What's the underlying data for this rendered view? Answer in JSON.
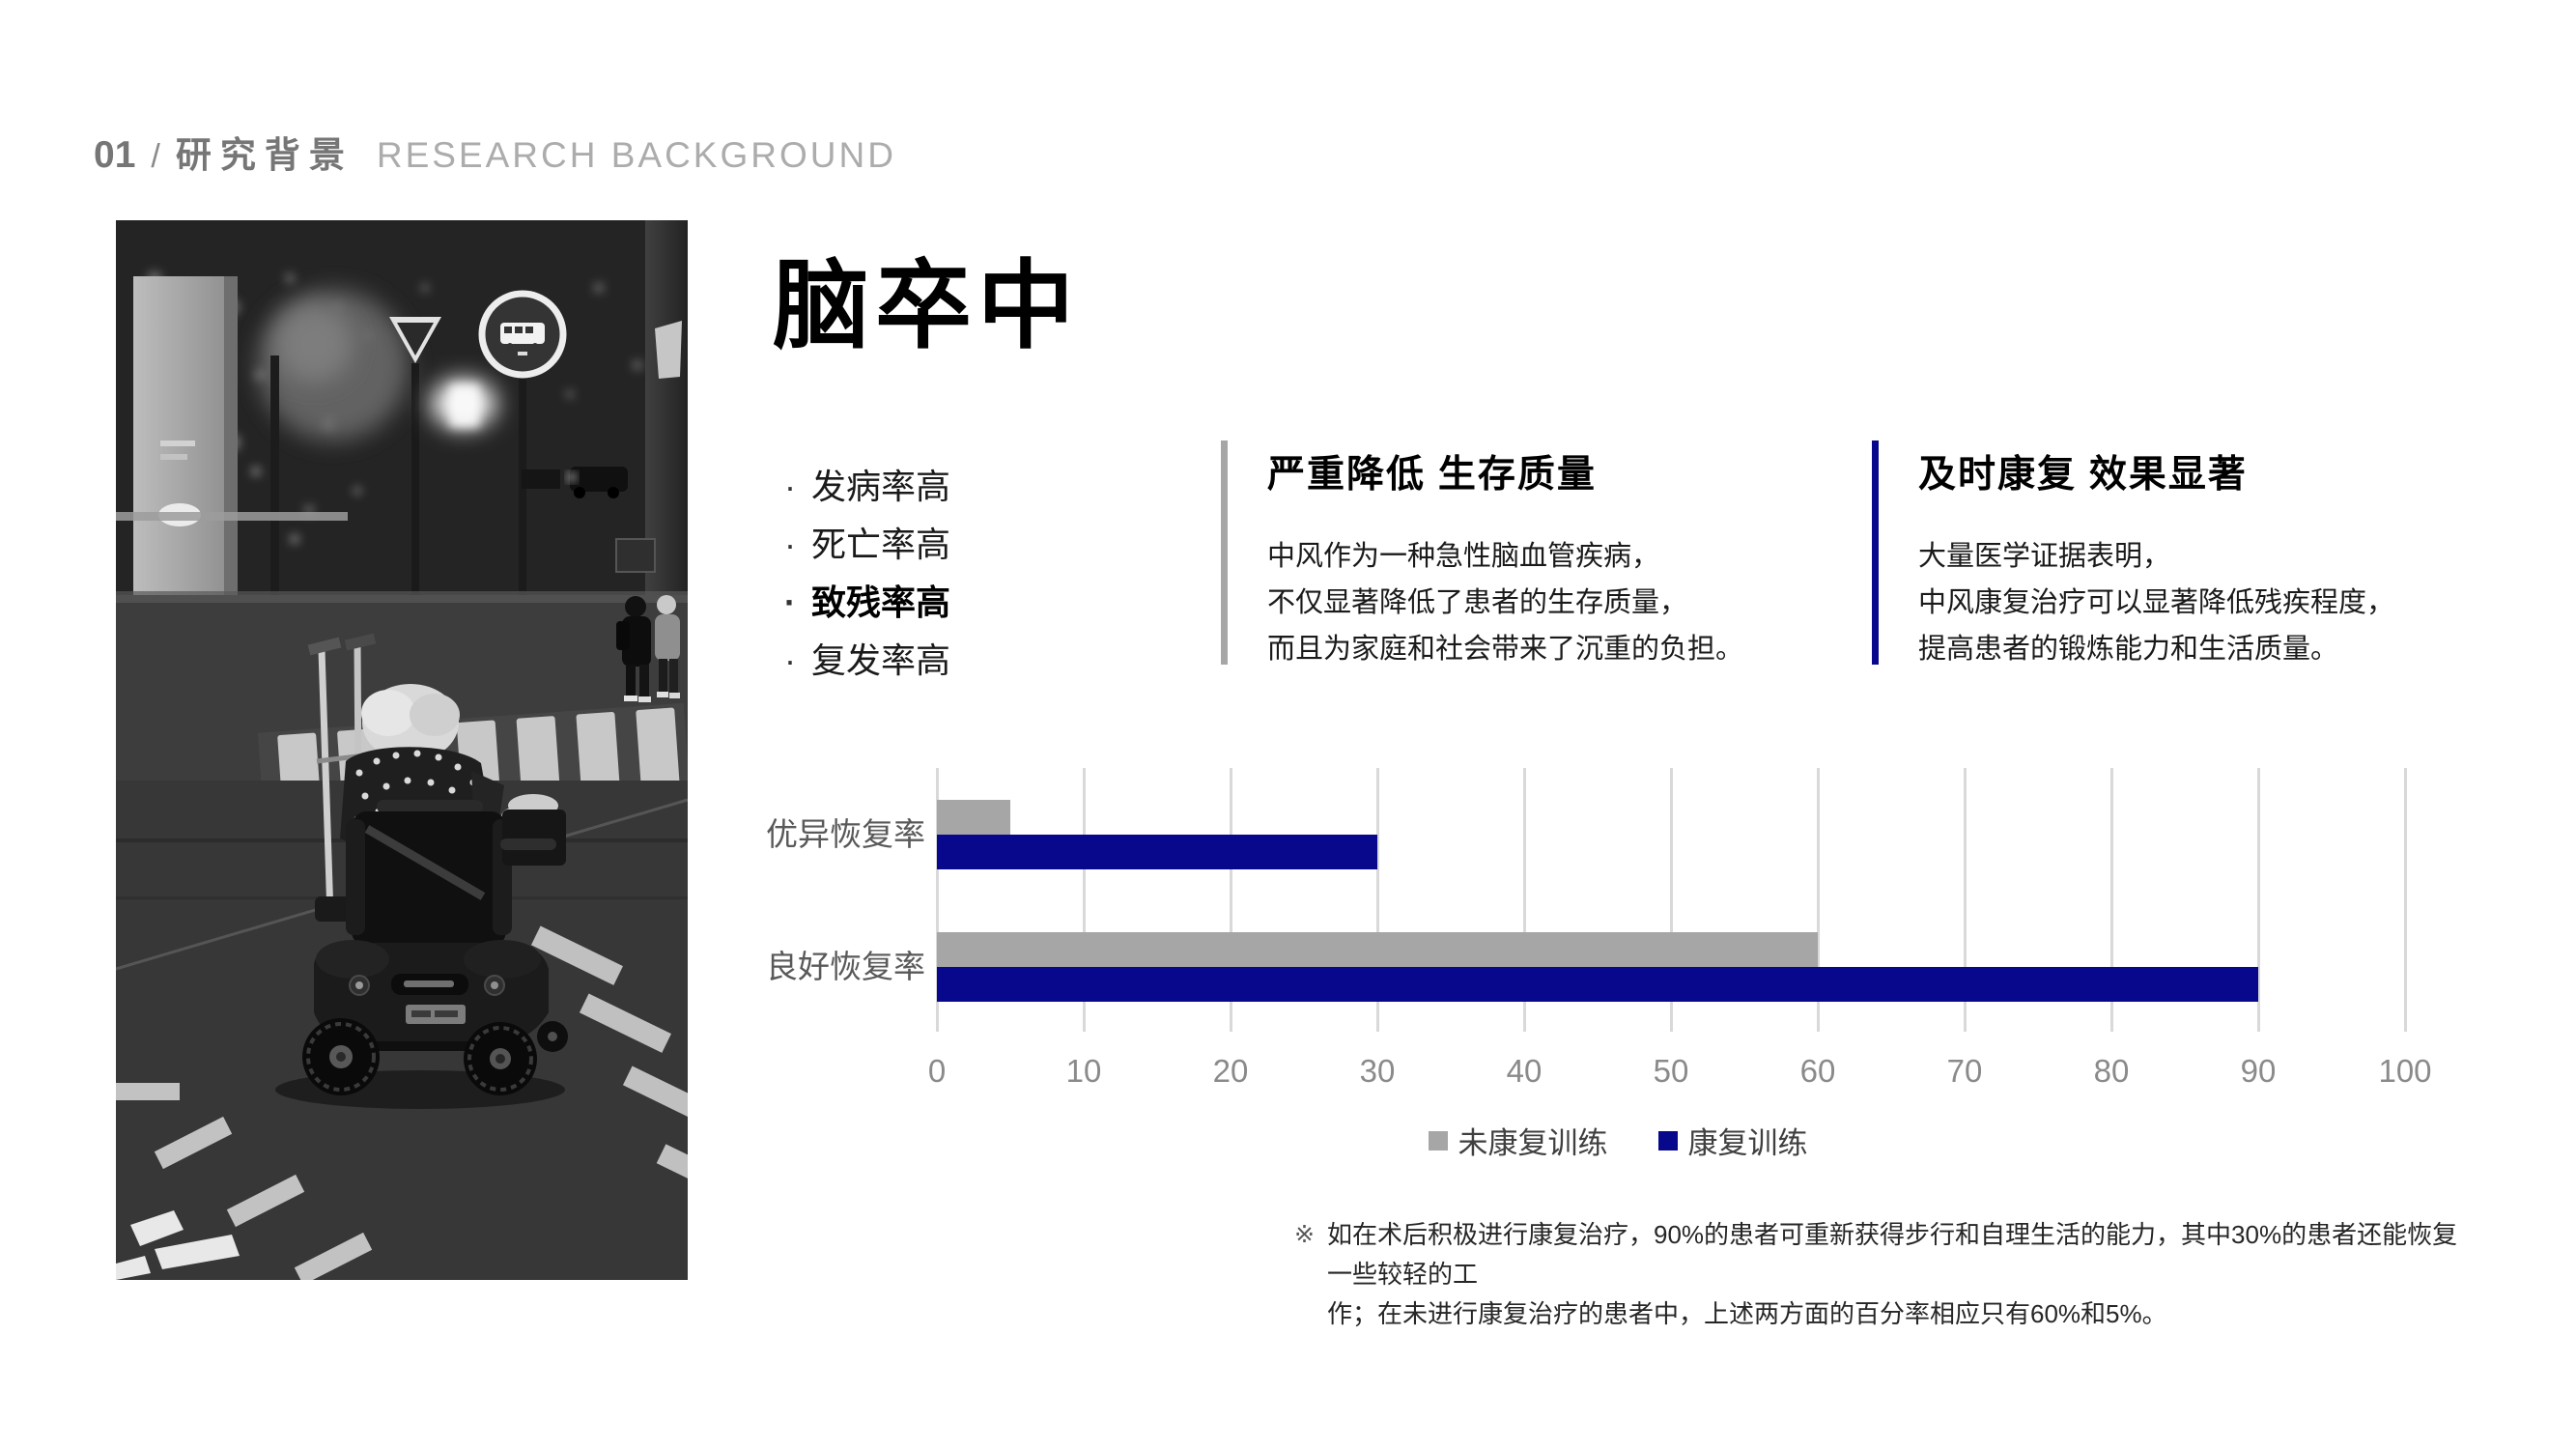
{
  "header": {
    "number": "01",
    "separator": "/",
    "title_zh": "研究背景",
    "title_en": "RESEARCH BACKGROUND"
  },
  "photo": {
    "alt": "black-and-white night street photo: elderly person with white hair on a mobility scooter with crutches, crossing a zebra crosswalk"
  },
  "title": "脑卒中",
  "bullets": {
    "marker": "·",
    "items": [
      {
        "text": "发病率高",
        "emphasis": false
      },
      {
        "text": "死亡率高",
        "emphasis": false
      },
      {
        "text": "致残率高",
        "emphasis": true
      },
      {
        "text": "复发率高",
        "emphasis": false
      }
    ]
  },
  "cards": [
    {
      "accent_color": "#a6a6a6",
      "title": "严重降低 生存质量",
      "lines": [
        "中风作为一种急性脑血管疾病，",
        "不仅显著降低了患者的生存质量，",
        "而且为家庭和社会带来了沉重的负担。"
      ]
    },
    {
      "accent_color": "#08088c",
      "title": "及时康复 效果显著",
      "lines": [
        "大量医学证据表明，",
        "中风康复治疗可以显著降低残疾程度，",
        "提高患者的锻炼能力和生活质量。"
      ]
    }
  ],
  "chart_data": {
    "type": "bar",
    "orientation": "horizontal",
    "title": "",
    "categories": [
      "优异恢复率",
      "良好恢复率"
    ],
    "series": [
      {
        "name": "未康复训练",
        "color": "#a6a6a6",
        "values": [
          5,
          60
        ]
      },
      {
        "name": "康复训练",
        "color": "#08088c",
        "values": [
          30,
          90
        ]
      }
    ],
    "xlim": [
      0,
      100
    ],
    "xticks": [
      0,
      10,
      20,
      30,
      40,
      50,
      60,
      70,
      80,
      90,
      100
    ],
    "grid": true,
    "gridline_color": "#d9d9d9",
    "legend_position": "bottom"
  },
  "footnote": {
    "marker": "※",
    "lines": [
      "如在术后积极进行康复治疗，90%的患者可重新获得步行和自理生活的能力，其中30%的患者还能恢复一些较轻的工",
      "作；在未进行康复治疗的患者中，上述两方面的百分率相应只有60%和5%。"
    ]
  }
}
